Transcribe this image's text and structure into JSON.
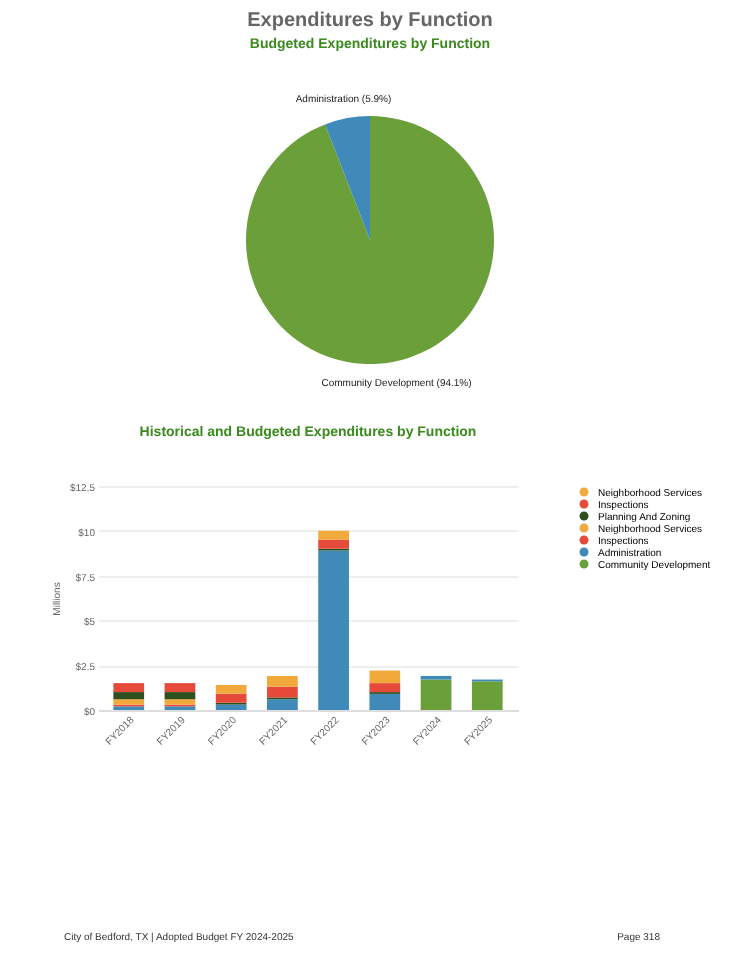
{
  "chart_data": [
    {
      "type": "pie",
      "title": "Expenditures by Function",
      "subtitle": "Budgeted Expenditures by Function",
      "categories": [
        "Community Development",
        "Administration"
      ],
      "values": [
        94.1,
        5.9
      ],
      "colors": [
        "#6a9f3a",
        "#3f8ab8"
      ],
      "value_labels": [
        "(94.1%)",
        "(5.9%)"
      ]
    },
    {
      "type": "bar",
      "title": "Historical and Budgeted Expenditures by Function",
      "ylabel": "Millions",
      "categories": [
        "FY2018",
        "FY2019",
        "FY2020",
        "FY2021",
        "FY2022",
        "FY2023",
        "FY2024",
        "FY2025"
      ],
      "stacked": true,
      "ylim": [
        0,
        12.5
      ],
      "yticks": [
        {
          "value": 0,
          "label": "$0"
        },
        {
          "value": 2.5,
          "label": "$2.5"
        },
        {
          "value": 5,
          "label": "$5"
        },
        {
          "value": 7.5,
          "label": "$7.5"
        },
        {
          "value": 10,
          "label": "$10"
        },
        {
          "value": 12.5,
          "label": "$12.5"
        }
      ],
      "grid": "y",
      "legend": "right",
      "series": [
        {
          "name": "Community Development",
          "color": "#6a9f3a",
          "values": [
            0,
            0,
            0,
            0,
            0,
            0,
            1.7,
            1.6
          ]
        },
        {
          "name": "Administration",
          "color": "#3f8ab8",
          "values": [
            0.2,
            0.2,
            0.3,
            0.6,
            8.9,
            0.9,
            0.2,
            0.1
          ]
        },
        {
          "name": "Inspections",
          "color": "#e64a3b",
          "values": [
            0.1,
            0.1,
            0,
            0,
            0,
            0,
            0,
            0
          ]
        },
        {
          "name": "Neighborhood Services",
          "color": "#f2a93b",
          "values": [
            0.3,
            0.3,
            0,
            0,
            0,
            0,
            0,
            0
          ]
        },
        {
          "name": "Planning And Zoning",
          "color": "#2f4f1f",
          "values": [
            0.4,
            0.4,
            0.1,
            0.1,
            0.1,
            0.1,
            0,
            0
          ]
        },
        {
          "name": "Inspections",
          "color": "#e64a3b",
          "values": [
            0.5,
            0.5,
            0.5,
            0.6,
            0.5,
            0.5,
            0,
            0
          ]
        },
        {
          "name": "Neighborhood Services",
          "color": "#f2a93b",
          "values": [
            0,
            0,
            0.5,
            0.6,
            0.5,
            0.7,
            0,
            0
          ]
        }
      ],
      "annotations": [
        "City of Bedford, TX | Adopted Budget FY 2024-2025",
        "Page 318"
      ]
    }
  ]
}
